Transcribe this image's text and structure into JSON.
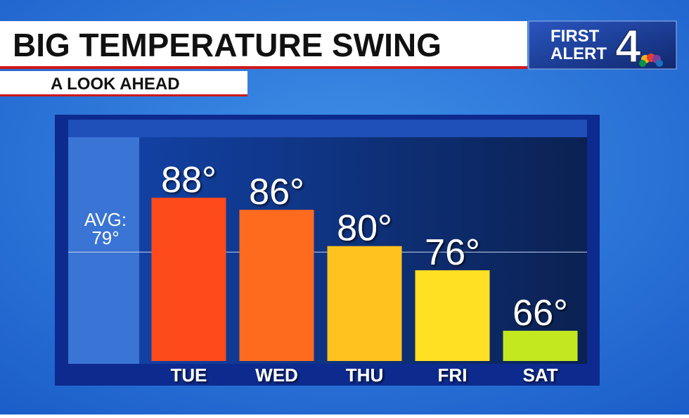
{
  "chart_data": {
    "type": "bar",
    "title": "BIG TEMPERATURE SWING",
    "subtitle": "A LOOK AHEAD",
    "logo": {
      "line1": "FIRST",
      "line2": "ALERT",
      "number": "4"
    },
    "categories": [
      "TUE",
      "WED",
      "THU",
      "FRI",
      "SAT"
    ],
    "values": [
      88,
      86,
      80,
      76,
      66
    ],
    "value_labels": [
      "88°",
      "86°",
      "80°",
      "76°",
      "66°"
    ],
    "colors": [
      "#ff4a1c",
      "#ff6b1e",
      "#ffc21e",
      "#ffe022",
      "#c4e820"
    ],
    "average": {
      "label": "AVG:",
      "value": 79,
      "value_label": "79°"
    },
    "ylim": [
      61,
      98
    ]
  }
}
